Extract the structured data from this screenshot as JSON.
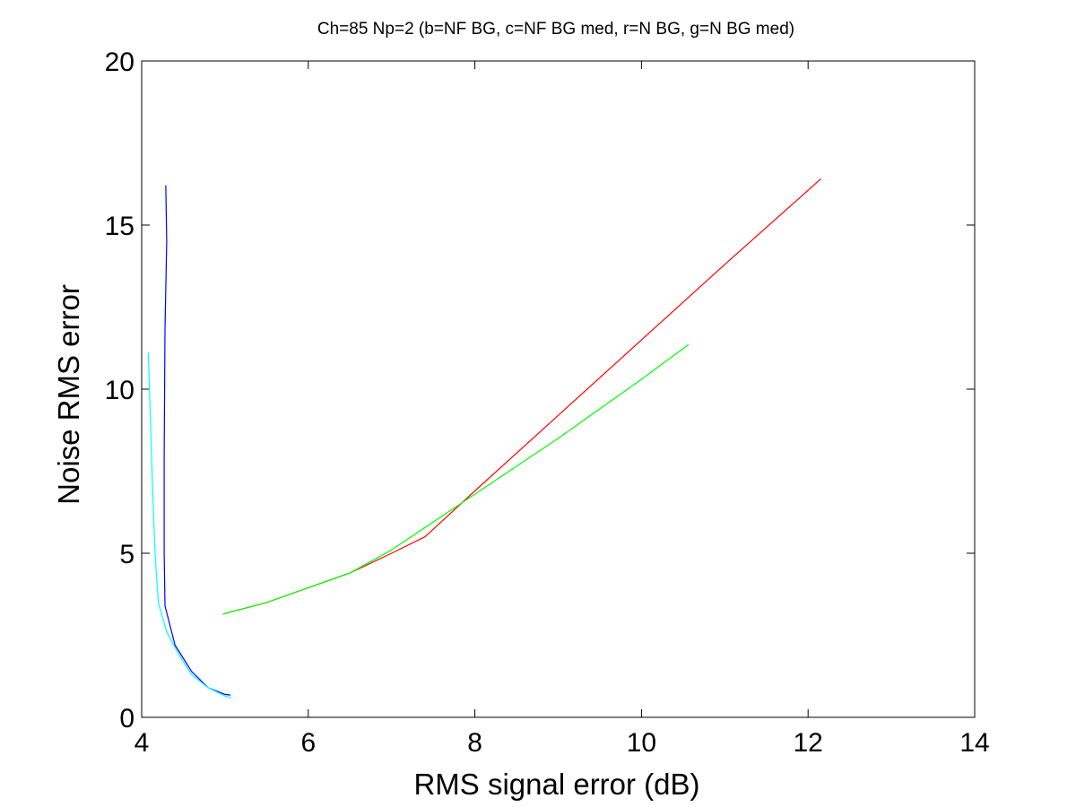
{
  "chart_data": {
    "type": "line",
    "title": "Ch=85 Np=2 (b=NF BG, c=NF BG med, r=N BG, g=N BG med)",
    "xlabel": "RMS signal error (dB)",
    "ylabel": "Noise RMS error",
    "xlim": [
      4,
      14
    ],
    "ylim": [
      0,
      20
    ],
    "xticks": [
      4,
      6,
      8,
      10,
      12,
      14
    ],
    "yticks": [
      0,
      5,
      10,
      15,
      20
    ],
    "grid": false,
    "series": [
      {
        "color": "#0000ff",
        "x": [
          4.29,
          4.3,
          4.28,
          4.27,
          4.27,
          4.28,
          4.4,
          4.6,
          4.8,
          5.0,
          5.06
        ],
        "y": [
          16.2,
          14.5,
          11.8,
          8.0,
          5.0,
          3.4,
          2.2,
          1.4,
          0.9,
          0.7,
          0.68
        ]
      },
      {
        "color": "#00ffff",
        "x": [
          4.08,
          4.1,
          4.13,
          4.16,
          4.2,
          4.3,
          4.45,
          4.6,
          4.8,
          5.0,
          5.07
        ],
        "y": [
          11.1,
          9.5,
          7.0,
          5.0,
          3.5,
          2.6,
          1.9,
          1.3,
          0.9,
          0.65,
          0.6
        ]
      },
      {
        "color": "#ff0000",
        "x": [
          4.98,
          5.5,
          6.0,
          6.5,
          7.0,
          7.4,
          8.0,
          9.0,
          10.0,
          11.0,
          12.15
        ],
        "y": [
          3.15,
          3.5,
          3.95,
          4.4,
          5.0,
          5.5,
          6.9,
          9.2,
          11.5,
          13.8,
          16.4
        ]
      },
      {
        "color": "#00ff00",
        "x": [
          4.98,
          5.5,
          6.0,
          6.5,
          7.0,
          8.0,
          9.0,
          10.0,
          10.56
        ],
        "y": [
          3.15,
          3.5,
          3.95,
          4.4,
          5.1,
          6.8,
          8.5,
          10.3,
          11.35
        ]
      }
    ]
  }
}
